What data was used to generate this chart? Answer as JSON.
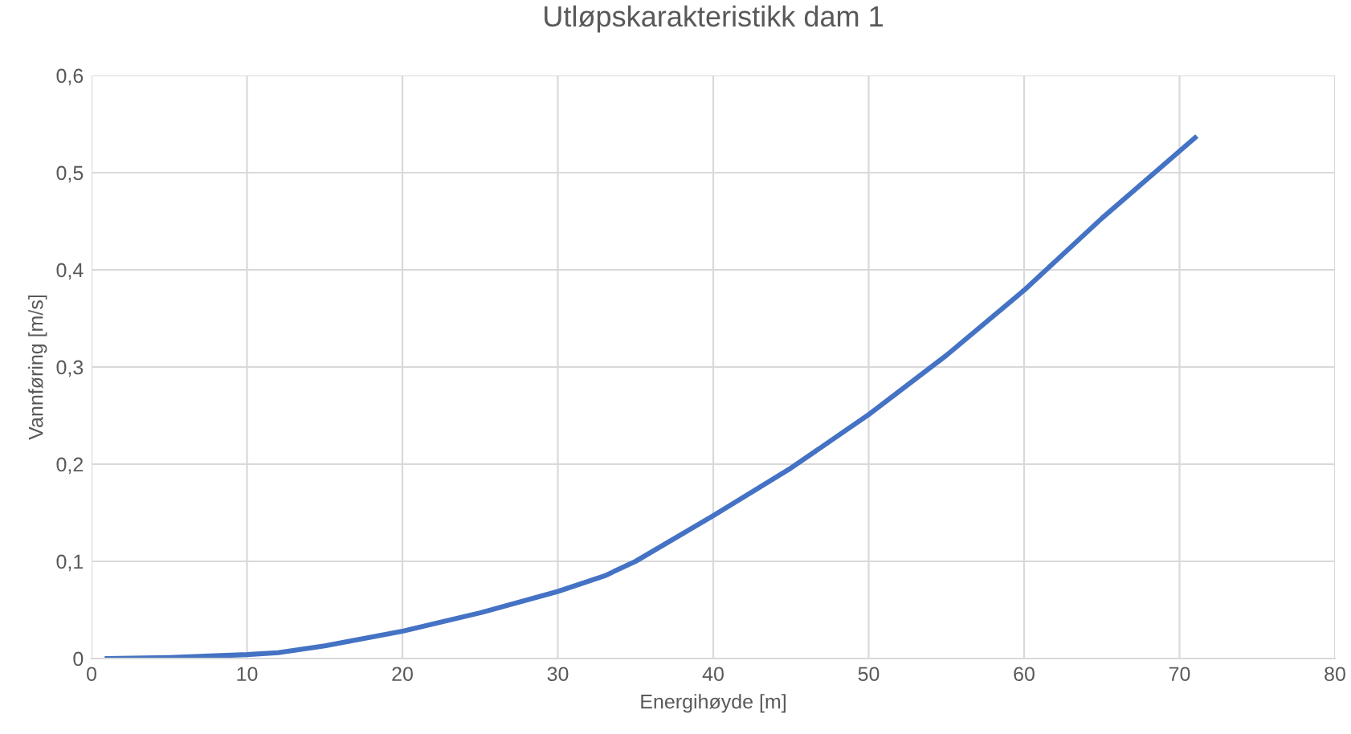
{
  "chart_data": {
    "type": "line",
    "title": "Utløpskarakteristikk dam 1",
    "xlabel": "Energihøyde [m]",
    "ylabel": "Vannføring [m/s]",
    "x": [
      1,
      5,
      10,
      12,
      15,
      20,
      25,
      30,
      33,
      35,
      40,
      45,
      50,
      55,
      60,
      65,
      71
    ],
    "series": [
      {
        "color": "#4472c4",
        "values": [
          0,
          0.001,
          0.004,
          0.006,
          0.013,
          0.028,
          0.047,
          0.069,
          0.085,
          0.1,
          0.147,
          0.196,
          0.251,
          0.312,
          0.379,
          0.453,
          0.536
        ]
      }
    ],
    "xlim": [
      0,
      80
    ],
    "xticks": [
      0,
      10,
      20,
      30,
      40,
      50,
      60,
      70,
      80
    ],
    "ylim": [
      0,
      0.6
    ],
    "yticks": [
      {
        "value": 0,
        "label": "0"
      },
      {
        "value": 0.1,
        "label": "0,1"
      },
      {
        "value": 0.2,
        "label": "0,2"
      },
      {
        "value": 0.3,
        "label": "0,3"
      },
      {
        "value": 0.4,
        "label": "0,4"
      },
      {
        "value": 0.5,
        "label": "0,5"
      },
      {
        "value": 0.6,
        "label": "0,6"
      }
    ],
    "grid": true,
    "marker": "none",
    "line_style": "solid",
    "legend": false
  }
}
